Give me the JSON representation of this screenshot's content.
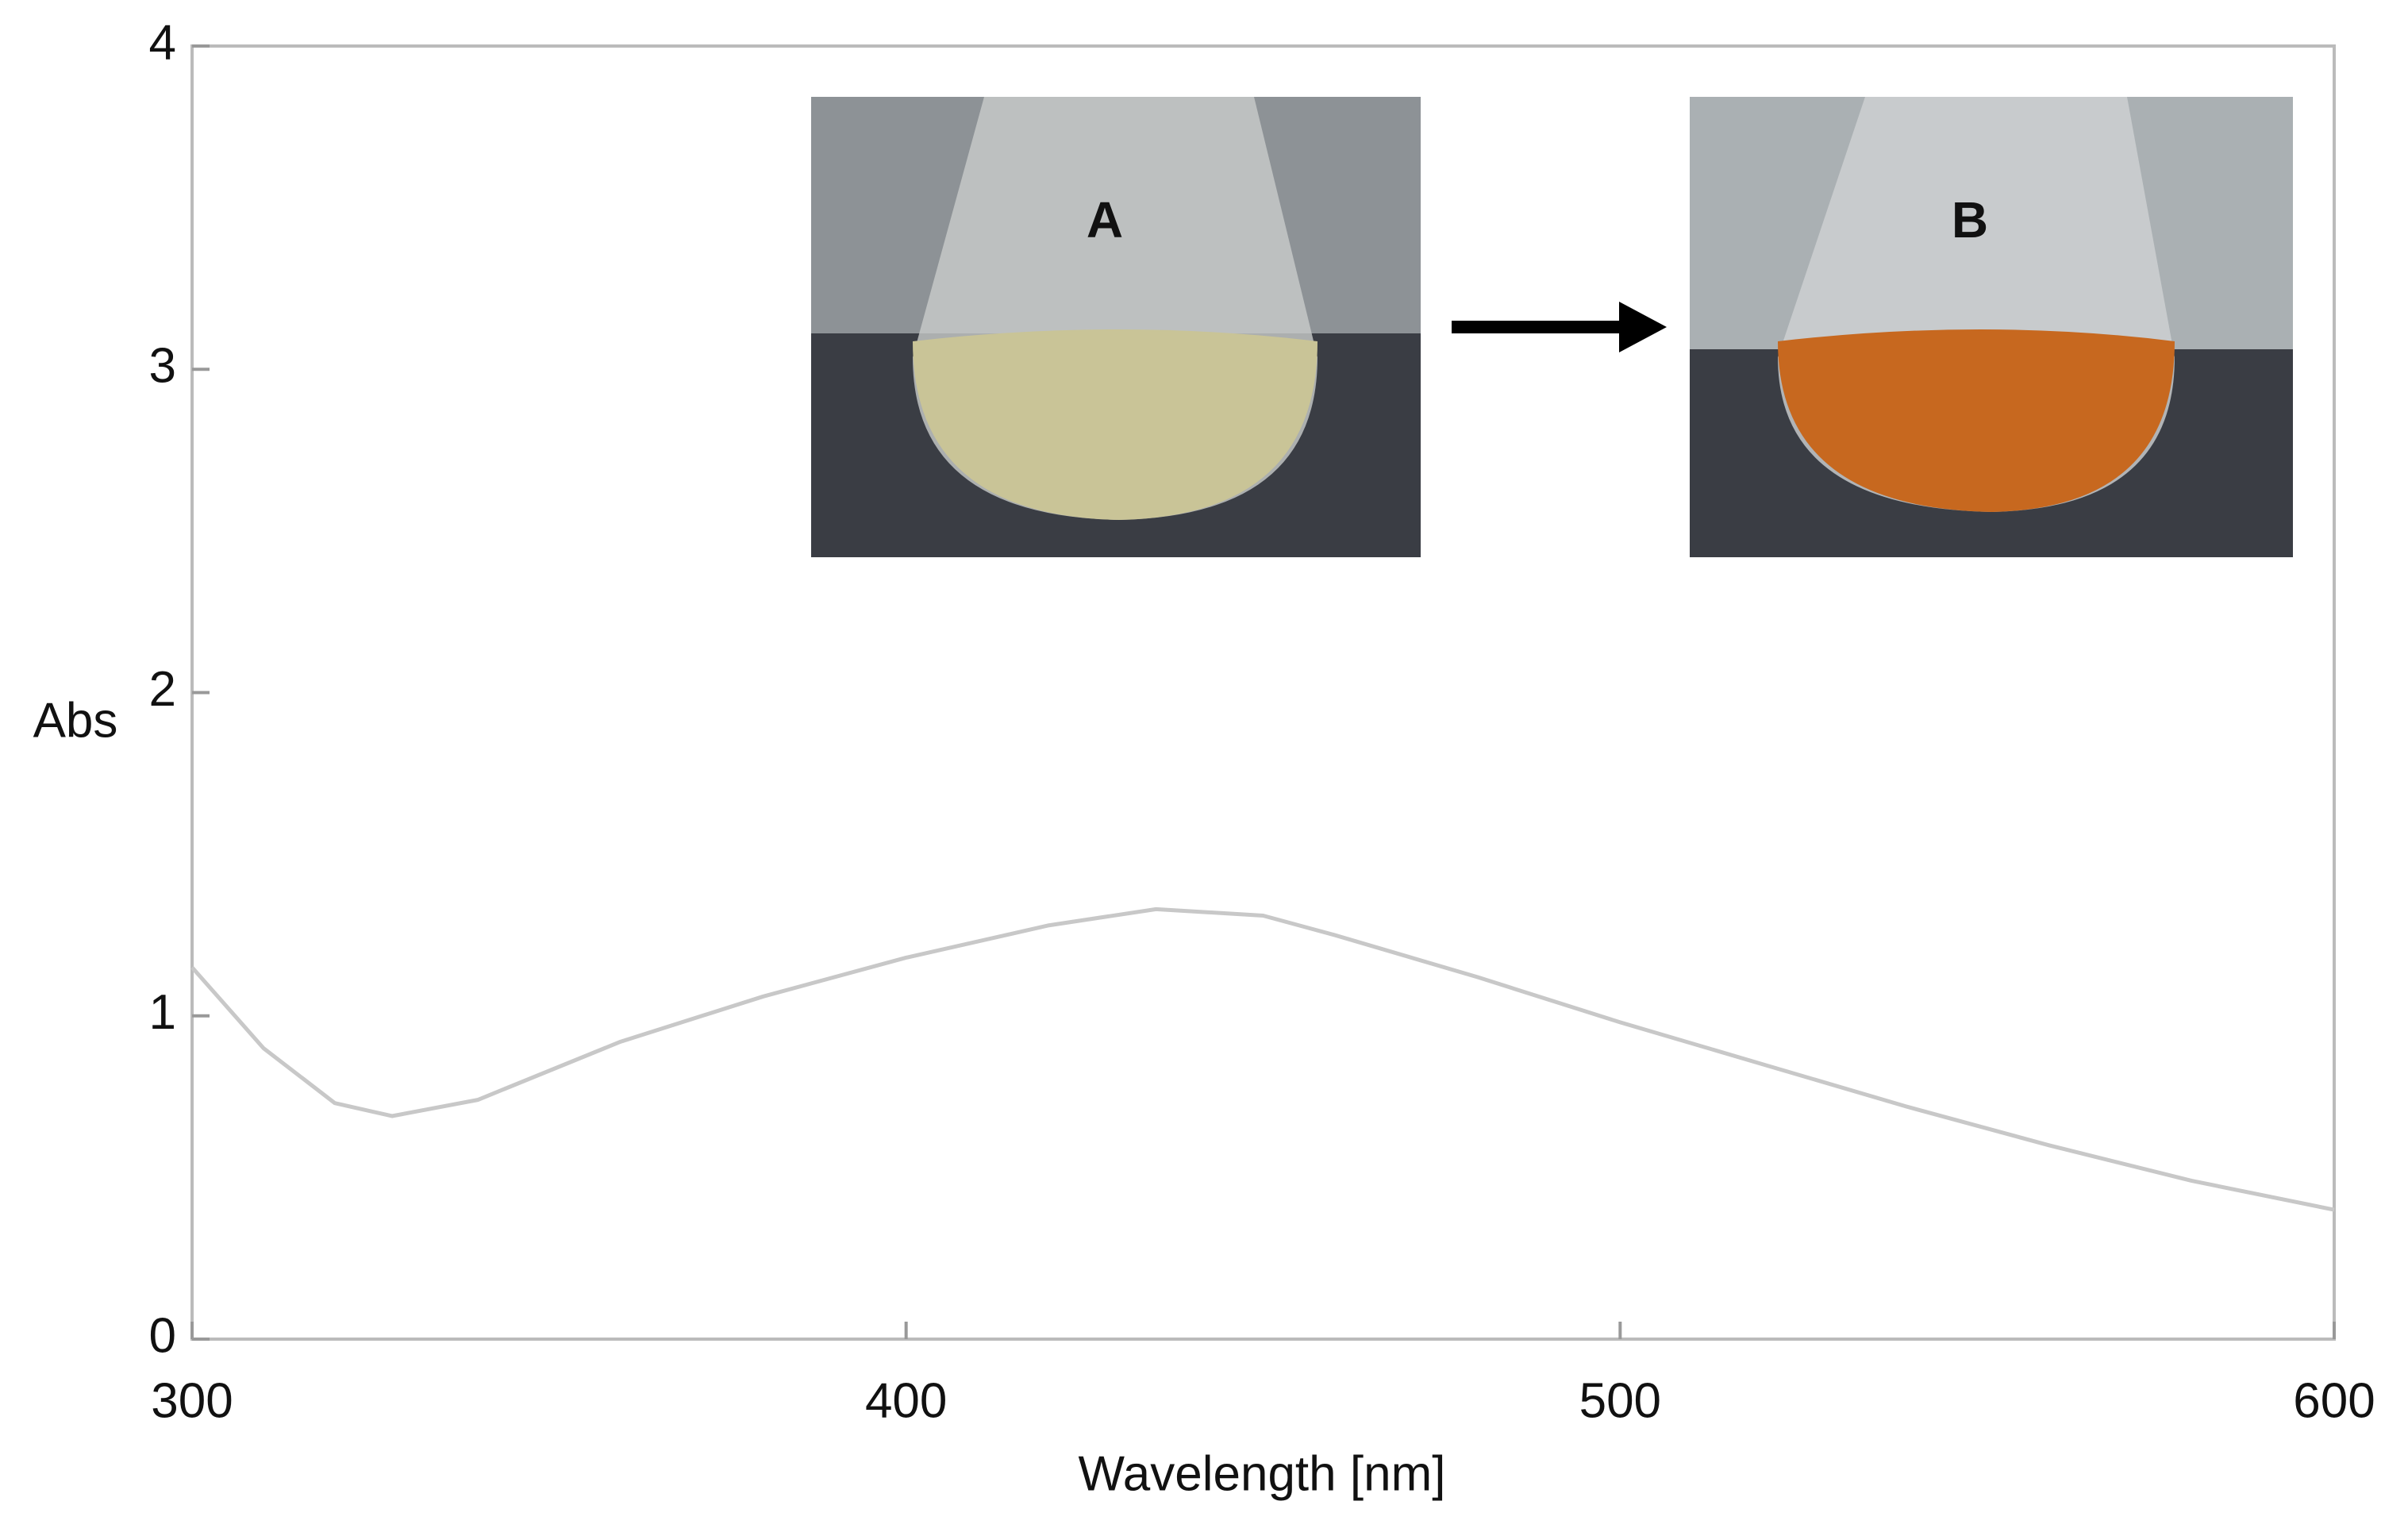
{
  "chart_data": {
    "type": "line",
    "x_label": "Wavelength [nm]",
    "y_label": "Abs",
    "annotations": [
      "A",
      "B"
    ],
    "x": [
      300,
      310,
      320,
      328,
      340,
      360,
      380,
      400,
      420,
      435,
      450,
      460,
      480,
      500,
      520,
      540,
      560,
      580,
      600
    ],
    "series": [
      {
        "color": "#c8c8c8",
        "values": [
          1.15,
          0.9,
          0.73,
          0.69,
          0.74,
          0.92,
          1.06,
          1.18,
          1.28,
          1.33,
          1.31,
          1.25,
          1.12,
          0.98,
          0.85,
          0.72,
          0.6,
          0.49,
          0.4
        ]
      }
    ],
    "xlim": [
      300,
      600
    ],
    "xticks": [
      300,
      400,
      500,
      600
    ],
    "ylim": [
      0,
      4
    ],
    "yticks": [
      0,
      1,
      2,
      3,
      4
    ]
  }
}
